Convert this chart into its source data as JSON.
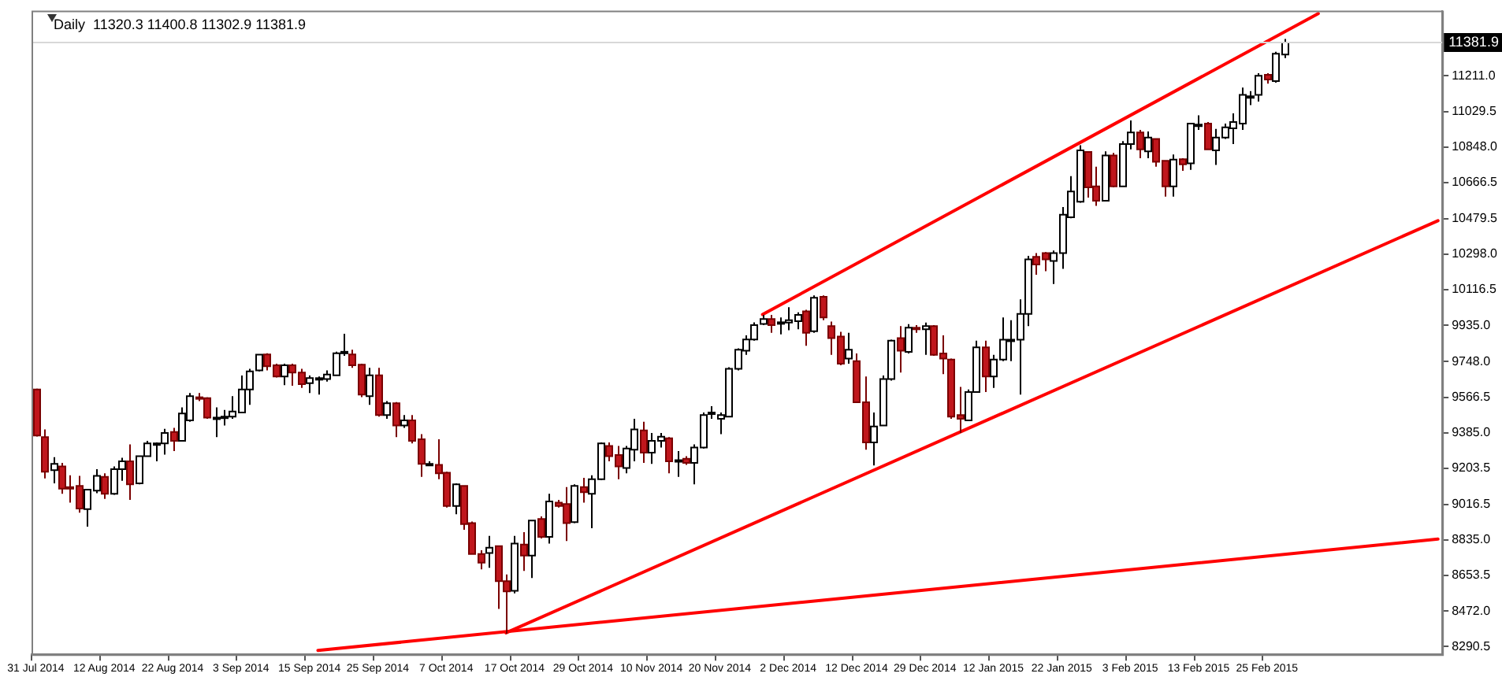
{
  "chart_data": {
    "type": "candlestick",
    "title": "Daily  11320.3 11400.8 11302.9 11381.9",
    "categories": [
      "31 Jul 2014",
      null,
      null,
      null,
      null,
      null,
      null,
      null,
      "12 Aug 2014",
      null,
      null,
      null,
      null,
      null,
      null,
      null,
      "22 Aug 2014",
      null,
      null,
      null,
      null,
      null,
      null,
      null,
      "3 Sep 2014",
      null,
      null,
      null,
      null,
      null,
      null,
      null,
      "15 Sep 2014",
      null,
      null,
      null,
      null,
      null,
      null,
      null,
      "25 Sep 2014",
      null,
      null,
      null,
      null,
      null,
      null,
      null,
      "7 Oct 2014",
      null,
      null,
      null,
      null,
      null,
      null,
      null,
      "17 Oct 2014",
      null,
      null,
      null,
      null,
      null,
      null,
      null,
      "29 Oct 2014",
      null,
      null,
      null,
      null,
      null,
      null,
      null,
      "10 Nov 2014",
      null,
      null,
      null,
      null,
      null,
      null,
      null,
      "20 Nov 2014",
      null,
      null,
      null,
      null,
      null,
      null,
      null,
      "2 Dec 2014",
      null,
      null,
      null,
      null,
      null,
      null,
      null,
      "12 Dec 2014",
      null,
      null,
      null,
      null,
      null,
      null,
      null,
      "29 Dec 2014",
      null,
      null,
      null,
      null,
      null,
      null,
      null,
      "12 Jan 2015",
      null,
      null,
      null,
      null,
      null,
      null,
      null,
      "22 Jan 2015",
      null,
      null,
      null,
      null,
      null,
      null,
      null,
      "3 Feb 2015",
      null,
      null,
      null,
      null,
      null,
      null,
      null,
      "13 Feb 2015",
      null,
      null,
      null,
      null,
      null,
      null,
      null,
      "25 Feb 2015",
      null,
      null,
      null,
      null,
      null,
      null,
      null,
      null,
      null,
      null,
      null,
      null,
      null,
      null,
      null,
      null,
      null,
      null,
      null,
      null
    ],
    "ohlc": [
      [
        9606,
        9610,
        9365,
        9370
      ],
      [
        9362,
        9401,
        9151,
        9185
      ],
      [
        9193,
        9259,
        9125,
        9225
      ],
      [
        9212,
        9230,
        9072,
        9098
      ],
      [
        9106,
        9167,
        9027,
        9098
      ],
      [
        9112,
        9164,
        8975,
        8996
      ],
      [
        8993,
        9093,
        8904,
        9093
      ],
      [
        9088,
        9198,
        9075,
        9164
      ],
      [
        9159,
        9177,
        9046,
        9072
      ],
      [
        9072,
        9212,
        9067,
        9198
      ],
      [
        9198,
        9256,
        9138,
        9238
      ],
      [
        9238,
        9325,
        9041,
        9120
      ],
      [
        9125,
        9264,
        9120,
        9264
      ],
      [
        9264,
        9343,
        9262,
        9330
      ],
      [
        9327,
        9335,
        9238,
        9330
      ],
      [
        9330,
        9404,
        9272,
        9383
      ],
      [
        9388,
        9409,
        9291,
        9343
      ],
      [
        9343,
        9514,
        9343,
        9483
      ],
      [
        9448,
        9588,
        9441,
        9572
      ],
      [
        9566,
        9588,
        9546,
        9562
      ],
      [
        9562,
        9566,
        9456,
        9462
      ],
      [
        9460,
        9514,
        9362,
        9462
      ],
      [
        9466,
        9501,
        9422,
        9467
      ],
      [
        9467,
        9572,
        9456,
        9493
      ],
      [
        9488,
        9677,
        9488,
        9606
      ],
      [
        9606,
        9712,
        9527,
        9699
      ],
      [
        9704,
        9784,
        9699,
        9784
      ],
      [
        9785,
        9791,
        9704,
        9725
      ],
      [
        9730,
        9738,
        9667,
        9672
      ],
      [
        9672,
        9738,
        9628,
        9730
      ],
      [
        9730,
        9738,
        9625,
        9693
      ],
      [
        9693,
        9712,
        9614,
        9633
      ],
      [
        9638,
        9677,
        9588,
        9664
      ],
      [
        9664,
        9672,
        9580,
        9664
      ],
      [
        9659,
        9704,
        9646,
        9683
      ],
      [
        9678,
        9799,
        9678,
        9791
      ],
      [
        9797,
        9891,
        9778,
        9799
      ],
      [
        9785,
        9809,
        9717,
        9730
      ],
      [
        9733,
        9738,
        9567,
        9580
      ],
      [
        9572,
        9717,
        9527,
        9678
      ],
      [
        9678,
        9717,
        9467,
        9475
      ],
      [
        9475,
        9546,
        9456,
        9535
      ],
      [
        9535,
        9541,
        9362,
        9422
      ],
      [
        9422,
        9475,
        9409,
        9448
      ],
      [
        9448,
        9475,
        9330,
        9343
      ],
      [
        9351,
        9377,
        9159,
        9225
      ],
      [
        9225,
        9238,
        9220,
        9225
      ],
      [
        9220,
        9351,
        9146,
        9177
      ],
      [
        9180,
        9185,
        9001,
        9009
      ],
      [
        9009,
        9125,
        8967,
        9120
      ],
      [
        9112,
        9112,
        8888,
        8917
      ],
      [
        8922,
        8930,
        8764,
        8764
      ],
      [
        8764,
        8783,
        8685,
        8719
      ],
      [
        8769,
        8856,
        8693,
        8796
      ],
      [
        8804,
        8804,
        8483,
        8625
      ],
      [
        8625,
        8659,
        8356,
        8572
      ],
      [
        8575,
        8856,
        8562,
        8817
      ],
      [
        8812,
        8875,
        8677,
        8756
      ],
      [
        8756,
        8935,
        8641,
        8935
      ],
      [
        8943,
        8956,
        8843,
        8851
      ],
      [
        8851,
        9072,
        8817,
        9033
      ],
      [
        9027,
        9041,
        9001,
        9009
      ],
      [
        9020,
        9106,
        8830,
        8922
      ],
      [
        8927,
        9120,
        8922,
        9112
      ],
      [
        9106,
        9154,
        9027,
        9080
      ],
      [
        9072,
        9167,
        8896,
        9146
      ],
      [
        9146,
        9335,
        9141,
        9330
      ],
      [
        9317,
        9335,
        9238,
        9264
      ],
      [
        9270,
        9317,
        9146,
        9212
      ],
      [
        9204,
        9317,
        9177,
        9304
      ],
      [
        9298,
        9456,
        9238,
        9401
      ],
      [
        9396,
        9441,
        9230,
        9283
      ],
      [
        9283,
        9383,
        9225,
        9343
      ],
      [
        9343,
        9383,
        9309,
        9364
      ],
      [
        9356,
        9362,
        9177,
        9238
      ],
      [
        9244,
        9291,
        9159,
        9244
      ],
      [
        9251,
        9264,
        9220,
        9230
      ],
      [
        9230,
        9325,
        9120,
        9309
      ],
      [
        9309,
        9488,
        9304,
        9475
      ],
      [
        9488,
        9520,
        9456,
        9488
      ],
      [
        9456,
        9488,
        9377,
        9475
      ],
      [
        9467,
        9720,
        9467,
        9712
      ],
      [
        9712,
        9817,
        9704,
        9809
      ],
      [
        9804,
        9883,
        9783,
        9862
      ],
      [
        9862,
        9949,
        9856,
        9935
      ],
      [
        9941,
        9988,
        9935,
        9967
      ],
      [
        9967,
        9988,
        9896,
        9935
      ],
      [
        9945,
        9975,
        9888,
        9950
      ],
      [
        9948,
        10027,
        9909,
        9961
      ],
      [
        9956,
        10001,
        9914,
        9988
      ],
      [
        10006,
        10014,
        9830,
        9896
      ],
      [
        9904,
        10088,
        9896,
        10075
      ],
      [
        10080,
        10088,
        9961,
        9975
      ],
      [
        9930,
        9954,
        9783,
        9869
      ],
      [
        9877,
        9901,
        9730,
        9738
      ],
      [
        9764,
        9896,
        9738,
        9809
      ],
      [
        9751,
        9790,
        9540,
        9540
      ],
      [
        9540,
        9672,
        9298,
        9335
      ],
      [
        9335,
        9488,
        9217,
        9417
      ],
      [
        9422,
        9677,
        9422,
        9659
      ],
      [
        9659,
        9861,
        9651,
        9856
      ],
      [
        9869,
        9930,
        9693,
        9804
      ],
      [
        9798,
        9940,
        9790,
        9922
      ],
      [
        9922,
        9935,
        9896,
        9914
      ],
      [
        9914,
        9948,
        9783,
        9930
      ],
      [
        9930,
        9935,
        9778,
        9783
      ],
      [
        9790,
        9883,
        9685,
        9764
      ],
      [
        9759,
        9764,
        9456,
        9467
      ],
      [
        9475,
        9619,
        9383,
        9456
      ],
      [
        9448,
        9606,
        9448,
        9593
      ],
      [
        9593,
        9856,
        9593,
        9822
      ],
      [
        9822,
        9856,
        9593,
        9672
      ],
      [
        9672,
        9783,
        9614,
        9759
      ],
      [
        9759,
        9975,
        9751,
        9861
      ],
      [
        9861,
        9961,
        9751,
        9861
      ],
      [
        9861,
        10067,
        9580,
        9993
      ],
      [
        9993,
        10290,
        9930,
        10272
      ],
      [
        10285,
        10304,
        10193,
        10246
      ],
      [
        10304,
        10309,
        10211,
        10272
      ],
      [
        10264,
        10317,
        10146,
        10304
      ],
      [
        10304,
        10540,
        10224,
        10501
      ],
      [
        10488,
        10698,
        10482,
        10619
      ],
      [
        10567,
        10856,
        10562,
        10830
      ],
      [
        10822,
        10822,
        10588,
        10641
      ],
      [
        10646,
        10746,
        10546,
        10572
      ],
      [
        10572,
        10825,
        10572,
        10804
      ],
      [
        10804,
        10817,
        10641,
        10646
      ],
      [
        10646,
        10877,
        10646,
        10862
      ],
      [
        10862,
        10983,
        10835,
        10922
      ],
      [
        10922,
        10935,
        10790,
        10835
      ],
      [
        10825,
        10927,
        10790,
        10896
      ],
      [
        10888,
        10888,
        10746,
        10772
      ],
      [
        10777,
        10777,
        10593,
        10646
      ],
      [
        10646,
        10809,
        10593,
        10783
      ],
      [
        10785,
        10790,
        10725,
        10759
      ],
      [
        10764,
        10967,
        10730,
        10967
      ],
      [
        10962,
        11009,
        10935,
        10962
      ],
      [
        10967,
        10975,
        10835,
        10835
      ],
      [
        10830,
        10940,
        10756,
        10896
      ],
      [
        10896,
        10967,
        10888,
        10948
      ],
      [
        10943,
        11019,
        10862,
        10975
      ],
      [
        10967,
        11151,
        10935,
        11114
      ],
      [
        11107,
        11133,
        11062,
        11107
      ],
      [
        11114,
        11225,
        11080,
        11212
      ],
      [
        11217,
        11225,
        11172,
        11193
      ],
      [
        11185,
        11335,
        11177,
        11325
      ],
      [
        11320.3,
        11400.8,
        11302.9,
        11381.9
      ],
      null,
      null,
      null,
      null,
      null,
      null,
      null,
      null,
      null,
      null,
      null,
      null,
      null,
      null,
      null,
      null,
      null,
      null
    ],
    "series": [
      {
        "type": "line",
        "color": "#ff0000",
        "values": [
          null,
          null,
          null,
          null,
          null,
          null,
          null,
          null,
          null,
          null,
          null,
          null,
          null,
          null,
          null,
          null,
          null,
          null,
          null,
          null,
          null,
          null,
          null,
          null,
          null,
          null,
          null,
          null,
          null,
          null,
          null,
          null,
          null,
          null,
          null,
          null,
          null,
          null,
          null,
          null,
          null,
          null,
          null,
          null,
          null,
          null,
          null,
          null,
          null,
          null,
          null,
          null,
          null,
          null,
          null,
          null,
          null,
          null,
          null,
          null,
          null,
          null,
          null,
          null,
          null,
          null,
          null,
          null,
          null,
          null,
          null,
          null,
          null,
          null,
          null,
          null,
          null,
          null,
          null,
          null,
          null,
          null,
          null,
          null,
          null,
          9990,
          null,
          null,
          null,
          null,
          null,
          null,
          null,
          null,
          null,
          null,
          null,
          null,
          null,
          null,
          null,
          null,
          null,
          null,
          null,
          null,
          null,
          null,
          null,
          null,
          null,
          null,
          null,
          null,
          null,
          null,
          null,
          null,
          null,
          null,
          null,
          null,
          null,
          null,
          null,
          null,
          null,
          null,
          null,
          null,
          null,
          null,
          null,
          null,
          null,
          null,
          null,
          null,
          null,
          null,
          null,
          null,
          null,
          null,
          null,
          null,
          null,
          null,
          null,
          null,
          11530,
          null,
          null,
          null,
          null,
          null,
          null,
          null,
          null,
          null,
          null,
          null,
          null,
          null,
          null
        ]
      },
      {
        "type": "line",
        "color": "#ff0000",
        "values": [
          null,
          null,
          null,
          null,
          null,
          null,
          null,
          null,
          null,
          null,
          null,
          null,
          null,
          null,
          null,
          null,
          null,
          null,
          null,
          null,
          null,
          null,
          null,
          null,
          null,
          null,
          null,
          null,
          null,
          null,
          null,
          null,
          null,
          null,
          null,
          null,
          null,
          null,
          null,
          null,
          null,
          null,
          null,
          null,
          null,
          null,
          null,
          null,
          null,
          null,
          null,
          null,
          null,
          null,
          null,
          8360,
          null,
          null,
          null,
          null,
          null,
          null,
          null,
          null,
          null,
          null,
          null,
          null,
          null,
          null,
          null,
          null,
          null,
          null,
          null,
          null,
          null,
          null,
          null,
          null,
          null,
          null,
          null,
          null,
          null,
          null,
          null,
          null,
          null,
          null,
          null,
          null,
          null,
          null,
          null,
          null,
          null,
          null,
          null,
          null,
          null,
          null,
          null,
          null,
          null,
          null,
          null,
          null,
          null,
          null,
          null,
          null,
          null,
          null,
          null,
          null,
          null,
          null,
          null,
          null,
          null,
          null,
          null,
          null,
          null,
          null,
          null,
          null,
          null,
          null,
          null,
          null,
          null,
          null,
          null,
          null,
          null,
          null,
          null,
          null,
          null,
          null,
          null,
          null,
          null,
          null,
          null,
          null,
          null,
          null,
          null,
          null,
          null,
          null,
          null,
          null,
          null,
          null,
          null,
          null,
          null,
          null,
          null,
          null,
          10470
        ]
      },
      {
        "type": "line",
        "color": "#ff0000",
        "values": [
          null,
          null,
          null,
          null,
          null,
          null,
          null,
          null,
          null,
          null,
          null,
          null,
          null,
          null,
          null,
          null,
          null,
          null,
          null,
          null,
          null,
          null,
          null,
          null,
          null,
          null,
          null,
          null,
          null,
          null,
          null,
          null,
          null,
          8270,
          null,
          null,
          null,
          null,
          null,
          null,
          null,
          null,
          null,
          null,
          null,
          null,
          null,
          null,
          null,
          null,
          null,
          null,
          null,
          null,
          null,
          null,
          null,
          null,
          null,
          null,
          null,
          null,
          null,
          null,
          null,
          null,
          null,
          null,
          null,
          null,
          null,
          null,
          null,
          null,
          null,
          null,
          null,
          null,
          null,
          null,
          null,
          null,
          null,
          null,
          null,
          null,
          null,
          null,
          null,
          null,
          null,
          null,
          null,
          null,
          null,
          null,
          null,
          null,
          null,
          null,
          null,
          null,
          null,
          null,
          null,
          null,
          null,
          null,
          null,
          null,
          null,
          null,
          null,
          null,
          null,
          null,
          null,
          null,
          null,
          null,
          null,
          null,
          null,
          null,
          null,
          null,
          null,
          null,
          null,
          null,
          null,
          null,
          null,
          null,
          null,
          null,
          null,
          null,
          null,
          null,
          null,
          null,
          null,
          null,
          null,
          null,
          null,
          null,
          null,
          null,
          null,
          null,
          null,
          null,
          null,
          null,
          null,
          null,
          null,
          null,
          null,
          null,
          null,
          null,
          8840
        ]
      }
    ],
    "ylim": [
      8250,
      11545
    ],
    "yticks": [
      {
        "value": 8290.5,
        "label": "8290.5"
      },
      {
        "value": 8472,
        "label": "8472.0"
      },
      {
        "value": 8653.5,
        "label": "8653.5"
      },
      {
        "value": 8835,
        "label": "8835.0"
      },
      {
        "value": 9016.5,
        "label": "9016.5"
      },
      {
        "value": 9203.5,
        "label": "9203.5"
      },
      {
        "value": 9385,
        "label": "9385.0"
      },
      {
        "value": 9566.5,
        "label": "9566.5"
      },
      {
        "value": 9748,
        "label": "9748.0"
      },
      {
        "value": 9935,
        "label": "9935.0"
      },
      {
        "value": 10116.5,
        "label": "10116.5"
      },
      {
        "value": 10298,
        "label": "10298.0"
      },
      {
        "value": 10479.5,
        "label": "10479.5"
      },
      {
        "value": 10666.5,
        "label": "10666.5"
      },
      {
        "value": 10848,
        "label": "10848.0"
      },
      {
        "value": 11029.5,
        "label": "11029.5"
      },
      {
        "value": 11211,
        "label": "11211.0"
      }
    ],
    "ref_lines": [
      {
        "axis": "y",
        "value": 11381.9,
        "label": "11381.9",
        "color": "#d8d8d8"
      }
    ],
    "marker": "none"
  }
}
